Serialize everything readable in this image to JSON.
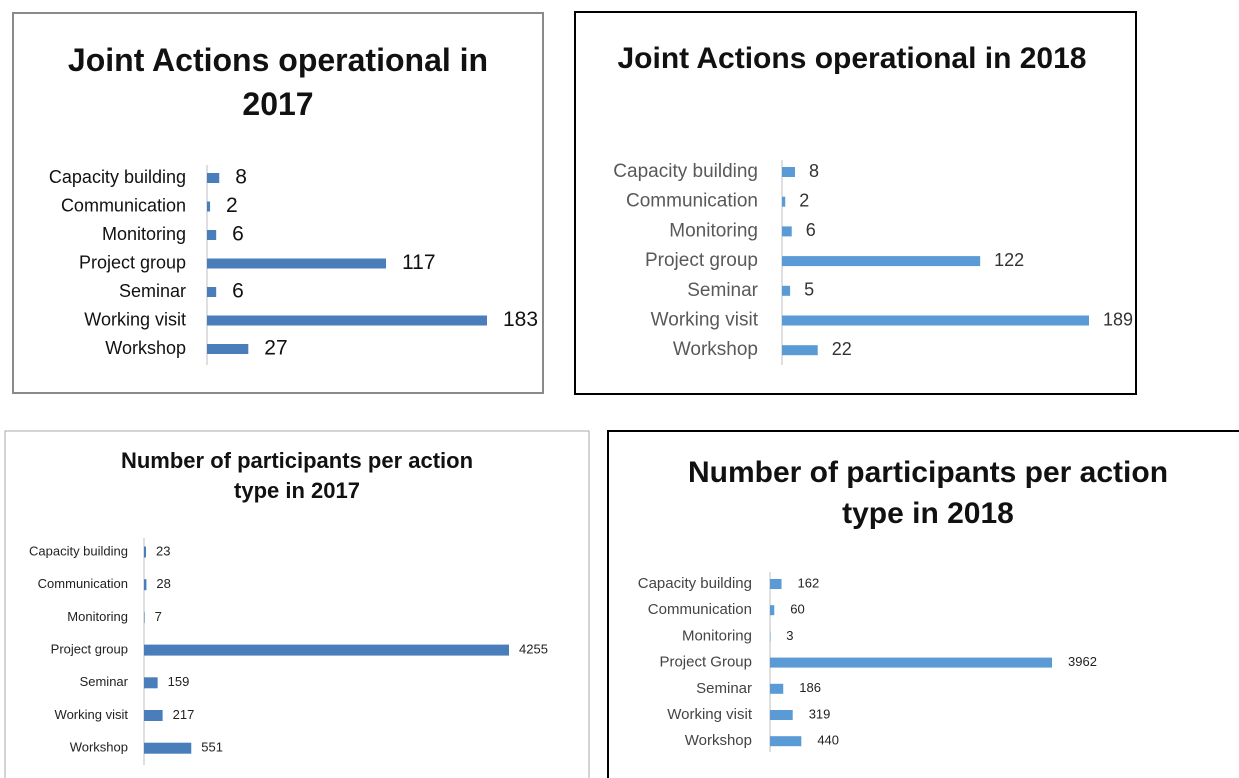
{
  "chart_data": [
    {
      "type": "bar",
      "orientation": "horizontal",
      "title": "Joint Actions operational in 2017",
      "categories": [
        "Capacity building",
        "Communication",
        "Monitoring",
        "Project group",
        "Seminar",
        "Working visit",
        "Workshop"
      ],
      "values": [
        8,
        2,
        6,
        117,
        6,
        183,
        27
      ],
      "color": "#4a7ebb"
    },
    {
      "type": "bar",
      "orientation": "horizontal",
      "title": "Joint Actions operational in 2018",
      "categories": [
        "Capacity building",
        "Communication",
        "Monitoring",
        "Project group",
        "Seminar",
        "Working visit",
        "Workshop"
      ],
      "values": [
        8,
        2,
        6,
        122,
        5,
        189,
        22
      ],
      "color": "#5b9bd5"
    },
    {
      "type": "bar",
      "orientation": "horizontal",
      "title": "Number of participants per action type in 2017",
      "categories": [
        "Capacity building",
        "Communication",
        "Monitoring",
        "Project group",
        "Seminar",
        "Working visit",
        "Workshop"
      ],
      "values": [
        23,
        28,
        7,
        4255,
        159,
        217,
        551
      ],
      "color": "#4a7ebb"
    },
    {
      "type": "bar",
      "orientation": "horizontal",
      "title": "Number of participants per action type in 2018",
      "categories": [
        "Capacity building",
        "Communication",
        "Monitoring",
        "Project Group",
        "Seminar",
        "Working visit",
        "Workshop"
      ],
      "values": [
        162,
        60,
        3,
        3962,
        186,
        319,
        440
      ],
      "color": "#5b9bd5"
    }
  ]
}
